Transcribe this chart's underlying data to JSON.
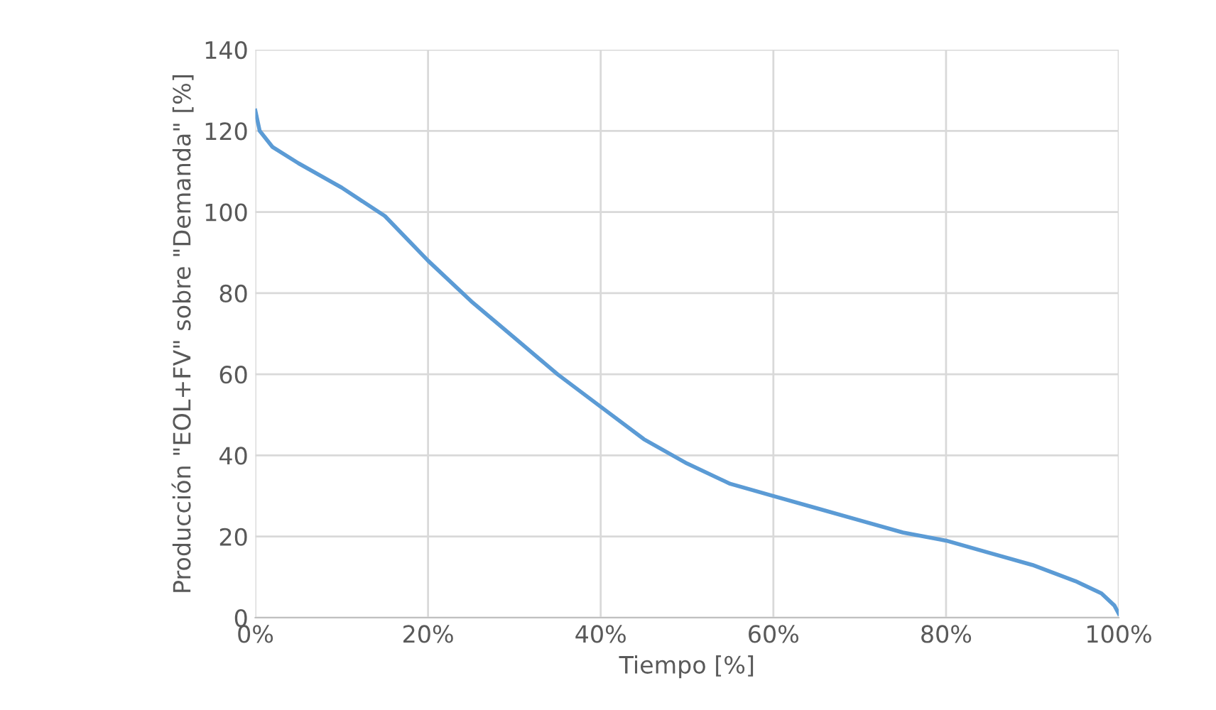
{
  "chart_data": {
    "type": "line",
    "xlabel": "Tiempo [%]",
    "ylabel": "Producción \"EOL+FV\" sobre \"Demanda\" [%]",
    "x": [
      0,
      0.5,
      2,
      5,
      10,
      15,
      20,
      25,
      30,
      35,
      40,
      45,
      50,
      55,
      60,
      65,
      70,
      75,
      80,
      85,
      90,
      95,
      98,
      99.5,
      100
    ],
    "series": [
      {
        "color": "#5b9bd5",
        "values": [
          125,
          120,
          116,
          112,
          106,
          99,
          88,
          78,
          69,
          60,
          52,
          44,
          38,
          33,
          30,
          27,
          24,
          21,
          19,
          16,
          13,
          9,
          6,
          3,
          1
        ]
      }
    ],
    "xlim": [
      0,
      100
    ],
    "xticks": [
      {
        "value": 0,
        "label": "0%"
      },
      {
        "value": 20,
        "label": "20%"
      },
      {
        "value": 40,
        "label": "40%"
      },
      {
        "value": 60,
        "label": "60%"
      },
      {
        "value": 80,
        "label": "80%"
      },
      {
        "value": 100,
        "label": "100%"
      }
    ],
    "ylim": [
      0,
      140
    ],
    "yticks": [
      0,
      20,
      40,
      60,
      80,
      100,
      120,
      140
    ],
    "grid": true,
    "marker": "none",
    "line_style": "solid"
  }
}
